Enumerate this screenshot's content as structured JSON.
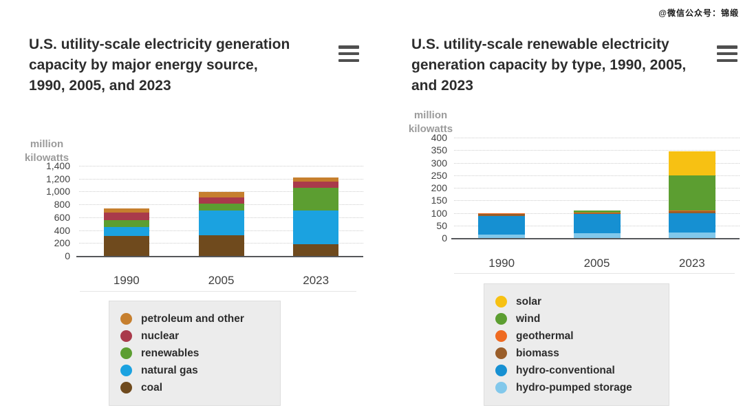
{
  "watermark": "@微信公众号：锦缎",
  "chart_data": [
    {
      "type": "bar",
      "stacked": true,
      "title": "U.S. utility-scale electricity generation capacity by major energy source, 1990, 2005, and 2023",
      "ylabel": "million kilowatts",
      "xlabel": "",
      "categories": [
        "1990",
        "2005",
        "2023"
      ],
      "series": [
        {
          "name": "coal",
          "color": "#6f4a1d",
          "values": [
            310,
            320,
            185
          ]
        },
        {
          "name": "natural gas",
          "color": "#1ba2e0",
          "values": [
            135,
            385,
            520
          ]
        },
        {
          "name": "renewables",
          "color": "#5c9e31",
          "values": [
            115,
            110,
            355
          ]
        },
        {
          "name": "nuclear",
          "color": "#a93a4b",
          "values": [
            115,
            95,
            90
          ]
        },
        {
          "name": "petroleum and other",
          "color": "#c67f2e",
          "values": [
            65,
            80,
            65
          ]
        }
      ],
      "legend": [
        {
          "label": "petroleum and other",
          "color": "#c67f2e"
        },
        {
          "label": "nuclear",
          "color": "#a93a4b"
        },
        {
          "label": "renewables",
          "color": "#5c9e31"
        },
        {
          "label": "natural gas",
          "color": "#1ba2e0"
        },
        {
          "label": "coal",
          "color": "#6f4a1d"
        }
      ],
      "ylim": [
        0,
        1400
      ],
      "ytick_step": 200,
      "yticks_top_to_bottom": [
        "1,400",
        "1,200",
        "1,000",
        "800",
        "600",
        "400",
        "200",
        "0"
      ],
      "grid": true,
      "legend_position": "bottom",
      "menu_icon": "hamburger-icon"
    },
    {
      "type": "bar",
      "stacked": true,
      "title": "U.S. utility-scale renewable electricity generation capacity by type, 1990, 2005, and 2023",
      "ylabel": "million kilowatts",
      "xlabel": "",
      "categories": [
        "1990",
        "2005",
        "2023"
      ],
      "series": [
        {
          "name": "hydro-pumped storage",
          "color": "#82c8eb",
          "values": [
            15,
            20,
            22
          ]
        },
        {
          "name": "hydro-conventional",
          "color": "#1690d2",
          "values": [
            73,
            78,
            76
          ]
        },
        {
          "name": "biomass",
          "color": "#9a5e2a",
          "values": [
            8,
            2,
            9
          ]
        },
        {
          "name": "geothermal",
          "color": "#ef6a21",
          "values": [
            4,
            1,
            3
          ]
        },
        {
          "name": "wind",
          "color": "#5c9e31",
          "values": [
            0,
            9,
            140
          ]
        },
        {
          "name": "solar",
          "color": "#f7c113",
          "values": [
            0,
            0,
            95
          ]
        }
      ],
      "legend": [
        {
          "label": "solar",
          "color": "#f7c113"
        },
        {
          "label": "wind",
          "color": "#5c9e31"
        },
        {
          "label": "geothermal",
          "color": "#ef6a21"
        },
        {
          "label": "biomass",
          "color": "#9a5e2a"
        },
        {
          "label": "hydro-conventional",
          "color": "#1690d2"
        },
        {
          "label": "hydro-pumped storage",
          "color": "#82c8eb"
        }
      ],
      "ylim": [
        0,
        400
      ],
      "ytick_step": 50,
      "yticks_top_to_bottom": [
        "400",
        "350",
        "300",
        "250",
        "200",
        "150",
        "100",
        "50",
        "0"
      ],
      "grid": true,
      "legend_position": "bottom",
      "menu_icon": "hamburger-icon"
    }
  ]
}
